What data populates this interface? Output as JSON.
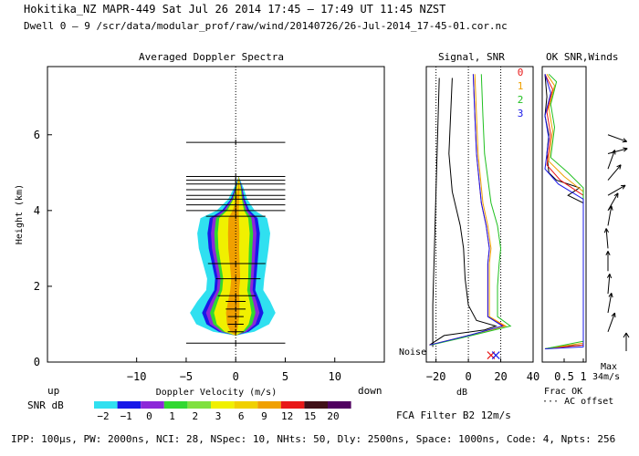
{
  "header": {
    "line1": "Hokitika_NZ   MAPR-449   Sat Jul 26 2014 17:45 — 17:49 UT 11:45 NZST",
    "line2": "Dwell  0 —  9   /scr/data/modular_prof/raw/wind/20140726/26-Jul-2014_17-45-01.cor.nc"
  },
  "panels": {
    "spectra_title": "Averaged Doppler Spectra",
    "signal_title": "Signal, SNR",
    "ok_title": "OK SNR,Winds"
  },
  "footer": {
    "params": "IPP: 100μs,  PW: 2000ns,  NCI:  28,  NSpec: 10, NHts: 50,  Dly: 2500ns,  Space: 1000ns,  Code: 4,  Npts: 256",
    "fca": "FCA Filter B2 12m/s",
    "frac_ok": "Frac OK",
    "ac_offset": "··· AC offset",
    "max_label": "Max",
    "max_value": "34m/s",
    "noise": "Noise",
    "up": "up",
    "down": "down",
    "snr_db": "SNR dB"
  },
  "colors": {
    "grey": "#a0a0a0",
    "cyan": "#30e0f0",
    "blue": "#1818e8",
    "purple": "#8c28d8",
    "green": "#30d830",
    "yellow": "#f0f000",
    "orange": "#f0a000",
    "red": "#e81818",
    "darkred": "#401018",
    "maroon": "#500060"
  },
  "chart_data": [
    {
      "type": "heatmap",
      "title": "Averaged Doppler Spectra",
      "xlabel": "Doppler Velocity (m/s)",
      "ylabel": "Height (km)",
      "xlim": [
        -19,
        15
      ],
      "ylim": [
        0,
        7.8
      ],
      "xticks": [
        -10,
        -5,
        0,
        5,
        10
      ],
      "yticks": [
        0,
        2,
        4,
        6
      ],
      "xtick_labels": [
        "−10",
        "−5",
        "0",
        "5",
        "10"
      ],
      "ytick_labels": [
        "0",
        "2",
        "4",
        "6"
      ],
      "spectrum_profile": [
        {
          "h": 0.7,
          "c": 0.0,
          "w": 0.0
        },
        {
          "h": 0.8,
          "c": -0.2,
          "w": 1.3
        },
        {
          "h": 1.0,
          "c": -0.3,
          "w": 2.3
        },
        {
          "h": 1.3,
          "c": -0.3,
          "w": 2.7
        },
        {
          "h": 1.6,
          "c": -0.2,
          "w": 2.3
        },
        {
          "h": 1.9,
          "c": -0.1,
          "w": 1.8
        },
        {
          "h": 2.2,
          "c": 0.0,
          "w": 1.8
        },
        {
          "h": 2.6,
          "c": -0.1,
          "w": 2.0
        },
        {
          "h": 3.0,
          "c": -0.2,
          "w": 2.2
        },
        {
          "h": 3.4,
          "c": -0.2,
          "w": 2.3
        },
        {
          "h": 3.8,
          "c": -0.2,
          "w": 2.1
        },
        {
          "h": 4.0,
          "c": 0.0,
          "w": 1.2
        },
        {
          "h": 4.3,
          "c": 0.2,
          "w": 0.6
        },
        {
          "h": 4.6,
          "c": 0.3,
          "w": 0.3
        },
        {
          "h": 4.9,
          "c": 0.3,
          "w": 0.0
        }
      ],
      "error_bars": [
        {
          "h": 5.8,
          "lo": -5.0,
          "hi": 5.0
        },
        {
          "h": 4.9,
          "lo": -5.0,
          "hi": 5.0
        },
        {
          "h": 4.8,
          "lo": -5.0,
          "hi": 5.0
        },
        {
          "h": 4.7,
          "lo": -5.0,
          "hi": 5.0
        },
        {
          "h": 4.55,
          "lo": -5.0,
          "hi": 5.0
        },
        {
          "h": 4.4,
          "lo": -5.0,
          "hi": 5.0
        },
        {
          "h": 4.3,
          "lo": -5.0,
          "hi": 5.0
        },
        {
          "h": 4.15,
          "lo": -5.0,
          "hi": 5.0
        },
        {
          "h": 4.0,
          "lo": -5.0,
          "hi": 5.0
        },
        {
          "h": 3.85,
          "lo": -3.0,
          "hi": 3.0
        },
        {
          "h": 2.6,
          "lo": -2.8,
          "hi": 3.0
        },
        {
          "h": 2.2,
          "lo": -2.0,
          "hi": 2.5
        },
        {
          "h": 1.75,
          "lo": -1.8,
          "hi": 2.0
        },
        {
          "h": 1.6,
          "lo": -1.0,
          "hi": 1.0
        },
        {
          "h": 1.4,
          "lo": -1.0,
          "hi": 1.0
        },
        {
          "h": 1.2,
          "lo": -0.8,
          "hi": 0.8
        },
        {
          "h": 1.0,
          "lo": -0.8,
          "hi": 0.8
        },
        {
          "h": 0.8,
          "lo": -0.8,
          "hi": 0.8
        },
        {
          "h": 0.5,
          "lo": -5.0,
          "hi": 5.0
        }
      ],
      "colorbar": {
        "label": "SNR dB",
        "levels": [
          "−2",
          "−1",
          "0",
          "1",
          "2",
          "3",
          "6",
          "9",
          "12",
          "15",
          "20"
        ],
        "colors": [
          "#30e0f0",
          "#1818e8",
          "#8c28d8",
          "#30d830",
          "#80e040",
          "#f0f000",
          "#f0d000",
          "#f0a000",
          "#e81818",
          "#401018",
          "#500060"
        ]
      }
    },
    {
      "type": "line",
      "title": "Signal, SNR",
      "xlabel": "dB",
      "xlim": [
        -26,
        40
      ],
      "ylim": [
        0,
        7.8
      ],
      "xticks": [
        -20,
        0,
        20,
        40
      ],
      "xtick_labels": [
        "−20",
        "0",
        "20",
        "40"
      ],
      "reference_lines_x": [
        -20,
        0,
        20
      ],
      "series": [
        {
          "name": "signal",
          "color": "#000000",
          "points": [
            [
              -24,
              0.45
            ],
            [
              -15,
              0.7
            ],
            [
              10,
              0.85
            ],
            [
              17,
              0.95
            ],
            [
              5,
              1.1
            ],
            [
              0,
              1.5
            ],
            [
              -2,
              2.2
            ],
            [
              -3,
              3.0
            ],
            [
              -5,
              3.6
            ],
            [
              -10,
              4.5
            ],
            [
              -12,
              5.5
            ],
            [
              -11,
              6.5
            ],
            [
              -10,
              7.5
            ]
          ]
        },
        {
          "name": "noise",
          "color": "#000000",
          "points": [
            [
              -22,
              0.4
            ],
            [
              -22,
              1.5
            ],
            [
              -21,
              3.0
            ],
            [
              -20,
              4.5
            ],
            [
              -19,
              6.0
            ],
            [
              -18,
              7.5
            ]
          ]
        },
        {
          "name": "snr_0",
          "color": "#e81818",
          "points": [
            [
              -24,
              0.45
            ],
            [
              0,
              0.7
            ],
            [
              22,
              0.95
            ],
            [
              12,
              1.2
            ],
            [
              12,
              2.0
            ],
            [
              12,
              2.6
            ],
            [
              13,
              3.0
            ],
            [
              11,
              3.6
            ],
            [
              8,
              4.2
            ],
            [
              5,
              5.5
            ],
            [
              4,
              6.5
            ],
            [
              3,
              7.6
            ]
          ]
        },
        {
          "name": "snr_1",
          "color": "#f0a000",
          "points": [
            [
              -24,
              0.45
            ],
            [
              0,
              0.7
            ],
            [
              23,
              0.95
            ],
            [
              13,
              1.2
            ],
            [
              13,
              2.0
            ],
            [
              13,
              2.6
            ],
            [
              14,
              3.0
            ],
            [
              12,
              3.6
            ],
            [
              9,
              4.2
            ],
            [
              6,
              5.5
            ],
            [
              5,
              6.5
            ],
            [
              4,
              7.6
            ]
          ]
        },
        {
          "name": "snr_2",
          "color": "#20c020",
          "points": [
            [
              -23,
              0.45
            ],
            [
              2,
              0.7
            ],
            [
              26,
              0.95
            ],
            [
              18,
              1.2
            ],
            [
              18,
              2.0
            ],
            [
              19,
              2.6
            ],
            [
              20,
              3.0
            ],
            [
              18,
              3.6
            ],
            [
              14,
              4.2
            ],
            [
              10,
              5.5
            ],
            [
              9,
              6.5
            ],
            [
              8,
              7.6
            ]
          ]
        },
        {
          "name": "snr_3",
          "color": "#1818e8",
          "points": [
            [
              -24,
              0.45
            ],
            [
              0,
              0.7
            ],
            [
              21,
              0.95
            ],
            [
              12,
              1.2
            ],
            [
              12,
              2.0
            ],
            [
              12,
              2.6
            ],
            [
              13,
              3.0
            ],
            [
              11,
              3.6
            ],
            [
              8,
              4.2
            ],
            [
              5,
              5.5
            ],
            [
              4,
              6.5
            ],
            [
              3,
              7.6
            ]
          ]
        }
      ],
      "markers": [
        {
          "x": 14,
          "h": 0.18,
          "color": "#e81818"
        },
        {
          "x": 17,
          "h": 0.18,
          "color": "#1818e8"
        }
      ],
      "legend": [
        "0",
        "1",
        "2",
        "3"
      ],
      "legend_colors": [
        "#e81818",
        "#f0a000",
        "#20c020",
        "#1818e8"
      ],
      "legend_position": "top-right"
    },
    {
      "type": "line",
      "title": "OK SNR,Winds",
      "xlabel": "Frac OK",
      "xlim": [
        0,
        1
      ],
      "ylim": [
        0,
        7.8
      ],
      "xticks": [
        0.5,
        1
      ],
      "xtick_labels": [
        "0.5",
        "1"
      ],
      "series": [
        {
          "name": "frac_ok",
          "color": "#000000",
          "points": [
            [
              0.0,
              0.35
            ],
            [
              0.3,
              0.4
            ],
            [
              1.0,
              0.45
            ],
            [
              1.0,
              4.2
            ],
            [
              0.6,
              4.4
            ],
            [
              0.9,
              4.6
            ],
            [
              0.3,
              4.8
            ],
            [
              0.1,
              5.0
            ],
            [
              0.05,
              5.5
            ],
            [
              0.1,
              6.0
            ],
            [
              0.0,
              6.5
            ],
            [
              0.05,
              7.0
            ],
            [
              0.0,
              7.6
            ]
          ]
        },
        {
          "name": "snr_ok_0",
          "color": "#e81818",
          "points": [
            [
              0.0,
              0.35
            ],
            [
              1.0,
              0.45
            ],
            [
              1.0,
              4.4
            ],
            [
              0.4,
              4.8
            ],
            [
              0.05,
              5.2
            ],
            [
              0.15,
              6.0
            ],
            [
              0.05,
              6.6
            ],
            [
              0.2,
              7.2
            ],
            [
              0.0,
              7.6
            ]
          ]
        },
        {
          "name": "snr_ok_1",
          "color": "#f0a000",
          "points": [
            [
              0.0,
              0.35
            ],
            [
              1.0,
              0.5
            ],
            [
              1.0,
              4.5
            ],
            [
              0.5,
              4.9
            ],
            [
              0.1,
              5.3
            ],
            [
              0.2,
              6.1
            ],
            [
              0.1,
              6.7
            ],
            [
              0.25,
              7.3
            ],
            [
              0.05,
              7.6
            ]
          ]
        },
        {
          "name": "snr_ok_2",
          "color": "#20c020",
          "points": [
            [
              0.0,
              0.35
            ],
            [
              1.0,
              0.55
            ],
            [
              1.0,
              4.6
            ],
            [
              0.6,
              5.0
            ],
            [
              0.15,
              5.4
            ],
            [
              0.25,
              6.2
            ],
            [
              0.15,
              6.8
            ],
            [
              0.3,
              7.4
            ],
            [
              0.1,
              7.6
            ]
          ]
        },
        {
          "name": "snr_ok_3",
          "color": "#1818e8",
          "points": [
            [
              0.0,
              0.35
            ],
            [
              1.0,
              0.4
            ],
            [
              1.0,
              4.3
            ],
            [
              0.35,
              4.7
            ],
            [
              0.0,
              5.1
            ],
            [
              0.1,
              5.9
            ],
            [
              0.0,
              6.5
            ],
            [
              0.15,
              7.1
            ],
            [
              0.0,
              7.6
            ]
          ]
        }
      ],
      "winds": [
        {
          "h": 0.8,
          "dir": 20
        },
        {
          "h": 1.3,
          "dir": 10
        },
        {
          "h": 1.8,
          "dir": 5
        },
        {
          "h": 2.4,
          "dir": 0
        },
        {
          "h": 3.0,
          "dir": 355
        },
        {
          "h": 3.6,
          "dir": 10
        },
        {
          "h": 4.0,
          "dir": 30
        },
        {
          "h": 4.4,
          "dir": 60
        },
        {
          "h": 4.8,
          "dir": 40
        },
        {
          "h": 5.1,
          "dir": 20
        },
        {
          "h": 5.5,
          "dir": 75
        },
        {
          "h": 6.0,
          "dir": 110
        }
      ],
      "max_wind": "34m/s"
    }
  ]
}
